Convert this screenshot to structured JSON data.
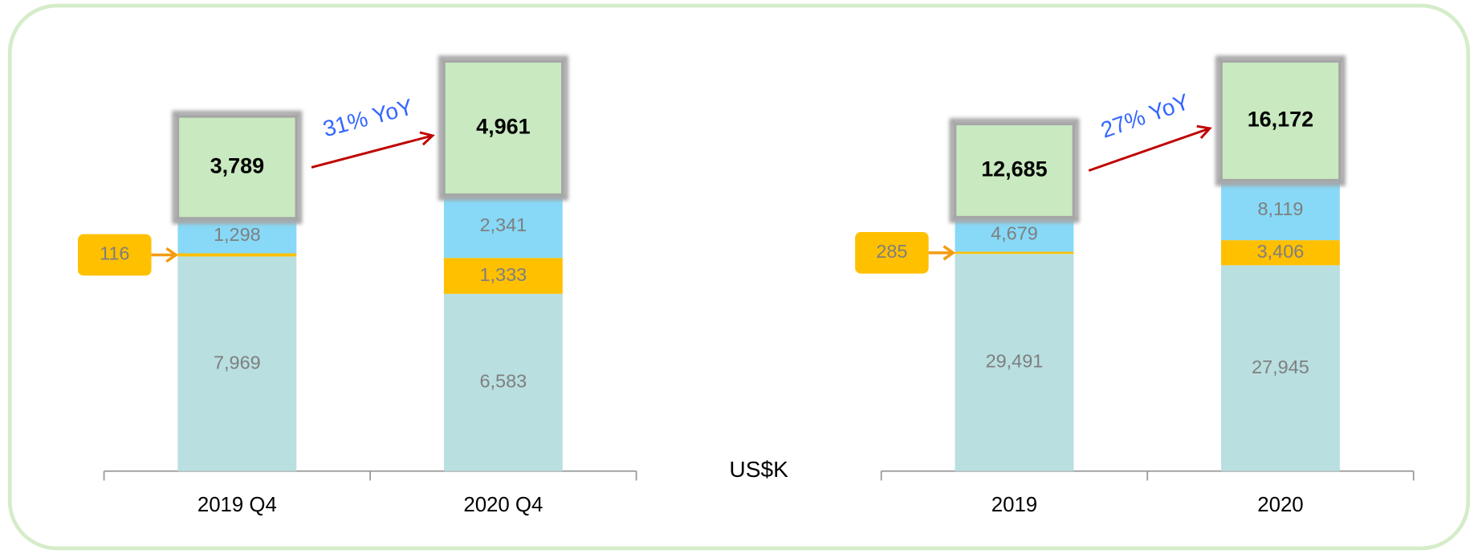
{
  "unit": "US$K",
  "chart_data": [
    {
      "type": "stacked_bar",
      "categories": [
        "2019 Q4",
        "2020 Q4"
      ],
      "annotation": "31% YoY",
      "top_border_color": "#a6a6a6",
      "arrow_color": "#c00000",
      "callout_color": "#f39c12",
      "series": [
        {
          "color": "#b9dfe0",
          "values": [
            7969,
            6583
          ],
          "value_labels": [
            "7,969",
            "6,583"
          ]
        },
        {
          "color": "#ffc000",
          "values": [
            116,
            1333
          ],
          "value_labels": [
            "116",
            "1,333"
          ]
        },
        {
          "color": "#87d9f7",
          "values": [
            1298,
            2341
          ],
          "value_labels": [
            "1,298",
            "2,341"
          ]
        },
        {
          "color": "#c9e9c0",
          "values": [
            3789,
            4961
          ],
          "value_labels": [
            "3,789",
            "4,961"
          ]
        }
      ]
    },
    {
      "type": "stacked_bar",
      "categories": [
        "2019",
        "2020"
      ],
      "annotation": "27% YoY",
      "top_border_color": "#a6a6a6",
      "arrow_color": "#c00000",
      "callout_color": "#f39c12",
      "series": [
        {
          "color": "#b9dfe0",
          "values": [
            29491,
            27945
          ],
          "value_labels": [
            "29,491",
            "27,945"
          ]
        },
        {
          "color": "#ffc000",
          "values": [
            285,
            3406
          ],
          "value_labels": [
            "285",
            "3,406"
          ]
        },
        {
          "color": "#87d9f7",
          "values": [
            4679,
            8119
          ],
          "value_labels": [
            "4,679",
            "8,119"
          ]
        },
        {
          "color": "#c9e9c0",
          "values": [
            12685,
            16172
          ],
          "value_labels": [
            "12,685",
            "16,172"
          ]
        }
      ]
    }
  ]
}
